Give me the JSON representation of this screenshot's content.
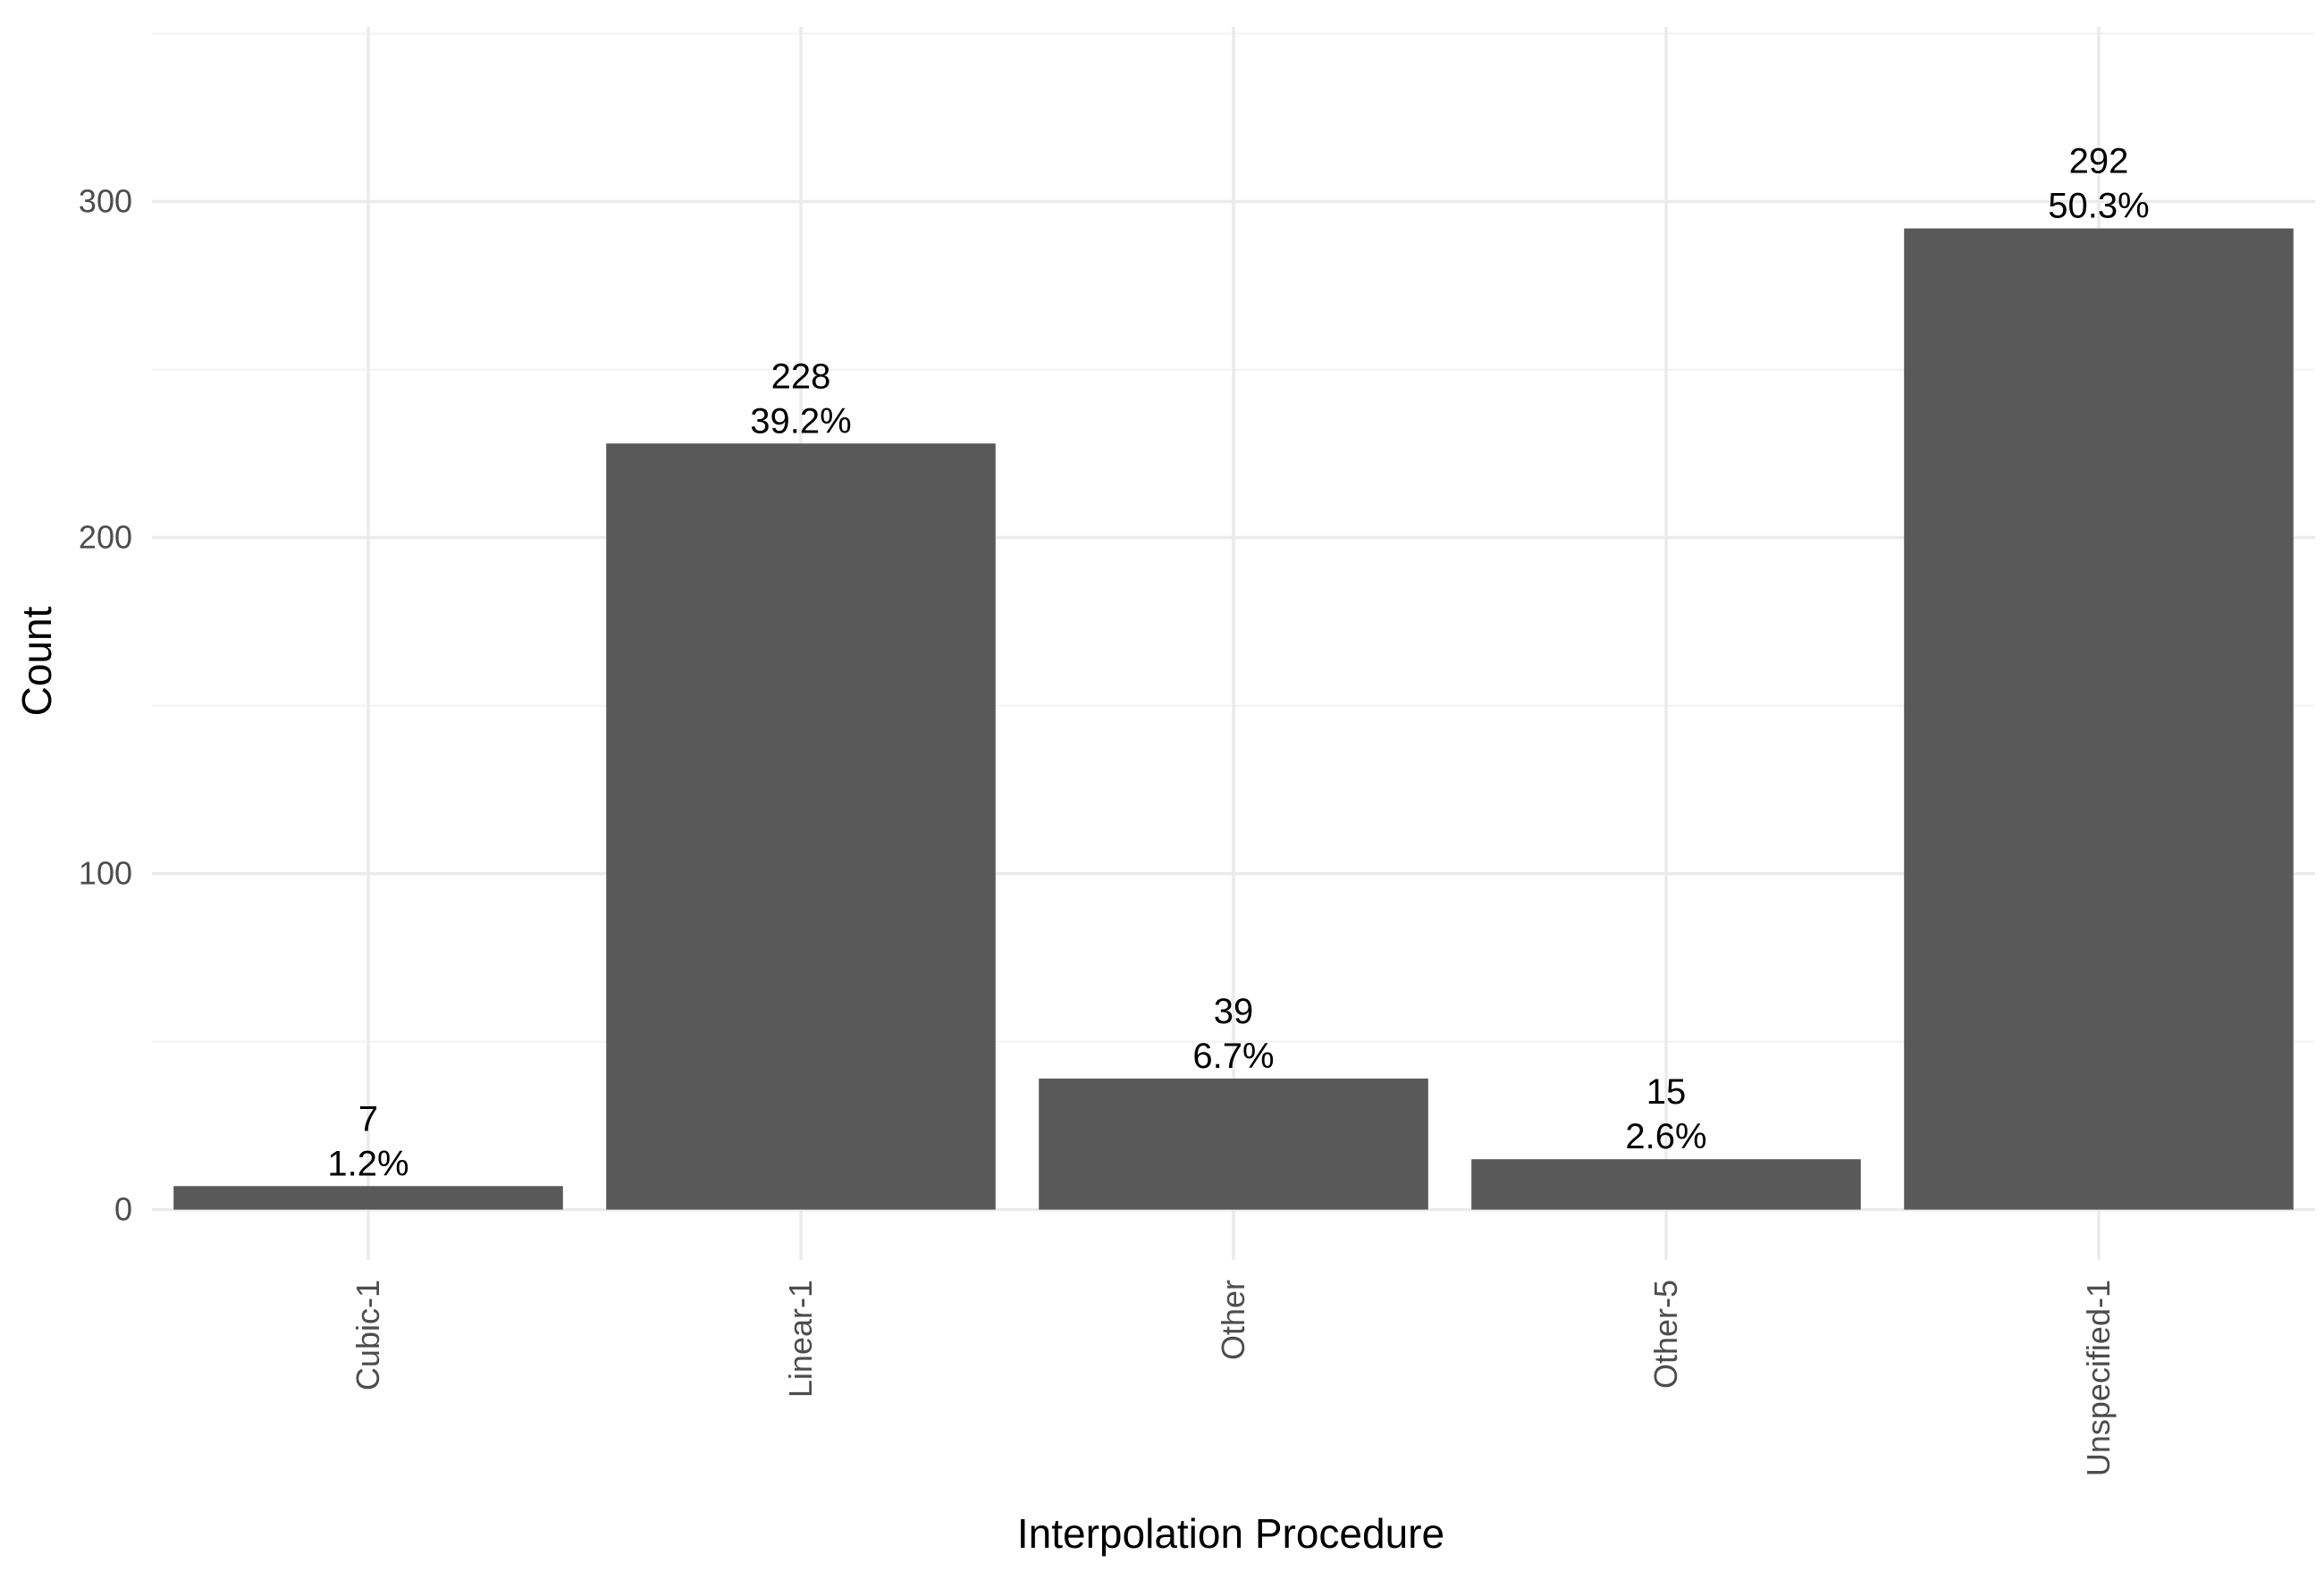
{
  "chart_data": {
    "type": "bar",
    "title": "",
    "xlabel": "Interpolation Procedure",
    "ylabel": "Count",
    "categories": [
      "Cubic-1",
      "Linear-1",
      "Other",
      "Other-5",
      "Unspecified-1"
    ],
    "values": [
      7,
      228,
      39,
      15,
      292
    ],
    "percent_labels": [
      "1.2%",
      "39.2%",
      "6.7%",
      "2.6%",
      "50.3%"
    ],
    "ylim": [
      -15,
      352
    ],
    "yticks": [
      0,
      100,
      200,
      300
    ],
    "grid": true,
    "legend": "none",
    "bar_color": "#595959",
    "background": "#ffffff"
  }
}
